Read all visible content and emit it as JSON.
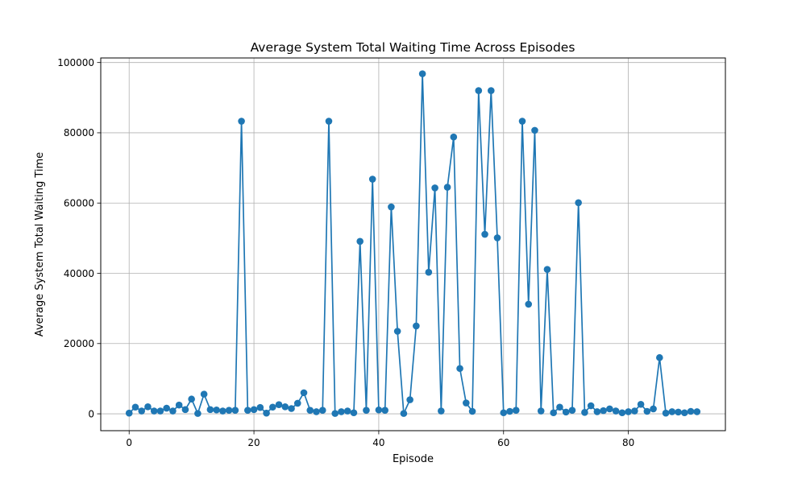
{
  "chart_data": {
    "type": "line",
    "title": "Average System Total Waiting Time Across Episodes",
    "xlabel": "Episode",
    "ylabel": "Average System Total Waiting Time",
    "xlim": [
      -4.55,
      95.55
    ],
    "ylim": [
      -4800,
      101300
    ],
    "xticks": [
      0,
      20,
      40,
      60,
      80
    ],
    "yticks": [
      0,
      20000,
      40000,
      60000,
      80000,
      100000
    ],
    "grid": true,
    "marker": "circle",
    "color": "#1f77b4",
    "x": [
      0,
      1,
      2,
      3,
      4,
      5,
      6,
      7,
      8,
      9,
      10,
      11,
      12,
      13,
      14,
      15,
      16,
      17,
      18,
      19,
      20,
      21,
      22,
      23,
      24,
      25,
      26,
      27,
      28,
      29,
      30,
      31,
      32,
      33,
      34,
      35,
      36,
      37,
      38,
      39,
      40,
      41,
      42,
      43,
      44,
      45,
      46,
      47,
      48,
      49,
      50,
      51,
      52,
      53,
      54,
      55,
      56,
      57,
      58,
      59,
      60,
      61,
      62,
      63,
      64,
      65,
      66,
      67,
      68,
      69,
      70,
      71,
      72,
      73,
      74,
      75,
      76,
      77,
      78,
      79,
      80,
      81,
      82,
      83,
      84,
      85,
      86,
      87,
      88,
      89,
      90,
      91
    ],
    "y": [
      200,
      1900,
      800,
      2000,
      800,
      800,
      1600,
      800,
      2500,
      1200,
      4200,
      100,
      5600,
      1200,
      1100,
      800,
      1000,
      1000,
      83300,
      1000,
      1200,
      1800,
      200,
      1900,
      2600,
      2000,
      1500,
      3000,
      6000,
      1000,
      600,
      1000,
      83300,
      100,
      600,
      800,
      300,
      49100,
      1000,
      66800,
      1100,
      1000,
      58900,
      23500,
      100,
      4000,
      25000,
      96800,
      40300,
      64300,
      800,
      64500,
      78800,
      12900,
      3100,
      700,
      92000,
      51100,
      92000,
      50100,
      300,
      700,
      1000,
      83300,
      31200,
      80700,
      800,
      41100,
      300,
      1900,
      500,
      1000,
      60100,
      400,
      2300,
      600,
      900,
      1400,
      800,
      300,
      600,
      800,
      2700,
      700,
      1400,
      16000,
      200,
      600,
      500,
      300,
      700,
      600
    ]
  }
}
